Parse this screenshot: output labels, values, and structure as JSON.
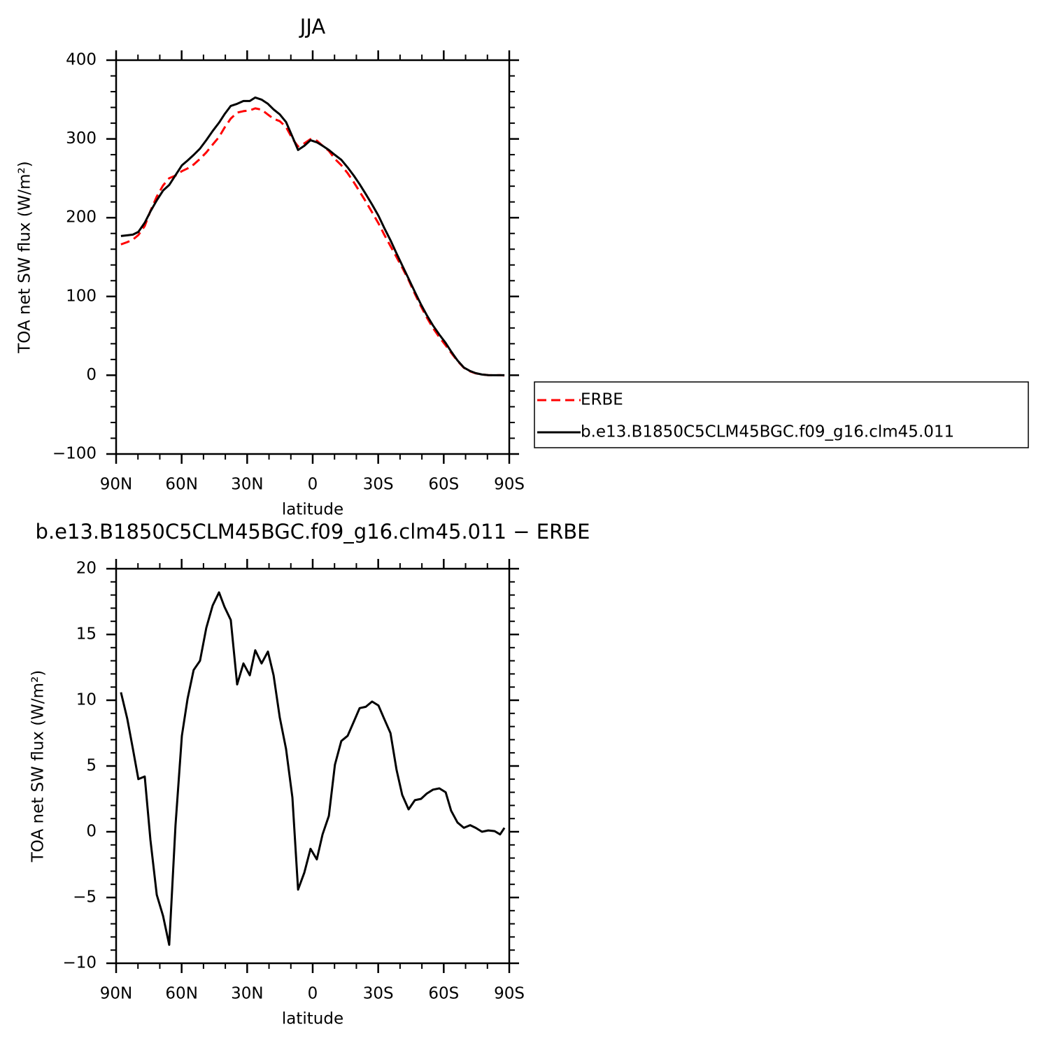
{
  "chart_data": [
    {
      "type": "line",
      "title": "JJA",
      "xlabel": "latitude",
      "ylabel": "TOA net SW flux (W/m²)",
      "xlim": [
        90,
        -90
      ],
      "ylim": [
        -100,
        400
      ],
      "xticks": [
        {
          "value": 90,
          "label": "90N"
        },
        {
          "value": 60,
          "label": "60N"
        },
        {
          "value": 30,
          "label": "30N"
        },
        0,
        {
          "value": -30,
          "label": "30S"
        },
        {
          "value": -60,
          "label": "60S"
        },
        {
          "value": -90,
          "label": "90S"
        }
      ],
      "yticks": [
        {
          "value": -100,
          "label": "−100"
        },
        0,
        100,
        200,
        300,
        400
      ],
      "x": [
        87.8,
        84.9,
        82.3,
        79.8,
        76.9,
        74.3,
        71.4,
        68.5,
        65.7,
        62.8,
        59.9,
        57.3,
        54.5,
        51.6,
        48.7,
        45.8,
        42.9,
        40.4,
        37.5,
        34.6,
        31.7,
        28.8,
        26.3,
        23.4,
        20.5,
        17.9,
        15.1,
        12.2,
        9.3,
        6.7,
        3.8,
        1.0,
        -1.9,
        -4.5,
        -7.4,
        -10.2,
        -13.1,
        -16.0,
        -18.9,
        -21.5,
        -24.3,
        -27.2,
        -30.1,
        -32.7,
        -35.6,
        -38.4,
        -41.0,
        -43.9,
        -46.8,
        -49.6,
        -52.2,
        -55.1,
        -58.0,
        -60.9,
        -63.4,
        -66.3,
        -69.2,
        -72.1,
        -74.6,
        -77.5,
        -80.4,
        -83.3,
        -85.8,
        -87.8
      ],
      "series": [
        {
          "name": "ERBE",
          "color": "#ff0000",
          "dashed": true,
          "values": [
            166.1,
            169.0,
            172.2,
            178.0,
            189.4,
            208.4,
            226.8,
            240.9,
            250.2,
            253.5,
            259.1,
            262.5,
            267.4,
            274.7,
            282.9,
            292.8,
            302.4,
            314.2,
            325.8,
            333.4,
            335.3,
            336.2,
            338.8,
            337.1,
            330.9,
            325.6,
            322.6,
            315.2,
            300.2,
            290.4,
            294.4,
            299.7,
            297.8,
            291.5,
            284.8,
            274.6,
            266.6,
            256.5,
            244.7,
            233.1,
            220.5,
            206.8,
            192.9,
            178.8,
            163.9,
            149.8,
            136.6,
            120.9,
            103.3,
            87.2,
            73.5,
            59.9,
            48.2,
            37.9,
            28.6,
            18.0,
            9.5,
            4.8,
            2.4,
            0.9,
            0.1,
            -0.05,
            0.2,
            -0.3
          ]
        },
        {
          "name": "b.e13.B1850C5CLM45BGC.f09_g16.clm45.011",
          "color": "#000000",
          "dashed": false,
          "values": [
            176.7,
            177.6,
            178.5,
            182.0,
            193.6,
            207.8,
            222.0,
            234.5,
            241.6,
            254.0,
            266.4,
            272.6,
            279.7,
            287.7,
            298.4,
            310.0,
            320.6,
            331.3,
            341.9,
            344.6,
            348.1,
            348.1,
            352.6,
            349.9,
            344.6,
            337.5,
            331.3,
            321.5,
            302.8,
            286.0,
            291.3,
            298.4,
            295.7,
            291.3,
            286.0,
            279.7,
            273.5,
            263.8,
            253.1,
            242.5,
            230.0,
            216.7,
            202.5,
            187.4,
            171.4,
            154.5,
            139.4,
            122.6,
            105.7,
            89.7,
            76.4,
            63.1,
            51.5,
            40.9,
            30.2,
            18.7,
            9.8,
            5.3,
            2.7,
            0.9,
            0.2,
            0,
            0,
            0
          ]
        }
      ]
    },
    {
      "type": "line",
      "title": "b.e13.B1850C5CLM45BGC.f09_g16.clm45.011  −  ERBE",
      "xlabel": "latitude",
      "ylabel": "TOA net SW flux (W/m²)",
      "xlim": [
        90,
        -90
      ],
      "ylim": [
        -10,
        20
      ],
      "xticks": [
        {
          "value": 90,
          "label": "90N"
        },
        {
          "value": 60,
          "label": "60N"
        },
        {
          "value": 30,
          "label": "30N"
        },
        0,
        {
          "value": -30,
          "label": "30S"
        },
        {
          "value": -60,
          "label": "60S"
        },
        {
          "value": -90,
          "label": "90S"
        }
      ],
      "yticks": [
        {
          "value": -10,
          "label": "−10"
        },
        {
          "value": -5,
          "label": "−5"
        },
        0,
        5,
        10,
        15,
        20
      ],
      "x": [
        87.8,
        84.9,
        82.3,
        79.8,
        76.9,
        74.3,
        71.4,
        68.5,
        65.7,
        62.8,
        59.9,
        57.3,
        54.5,
        51.6,
        48.7,
        45.8,
        42.9,
        40.4,
        37.5,
        34.6,
        31.7,
        28.8,
        26.3,
        23.4,
        20.5,
        17.9,
        15.1,
        12.2,
        9.3,
        6.7,
        3.8,
        1.0,
        -1.9,
        -4.5,
        -7.4,
        -10.2,
        -13.1,
        -16.0,
        -18.9,
        -21.5,
        -24.3,
        -27.2,
        -30.1,
        -32.7,
        -35.6,
        -38.4,
        -41.0,
        -43.9,
        -46.8,
        -49.6,
        -52.2,
        -55.1,
        -58.0,
        -60.9,
        -63.4,
        -66.3,
        -69.2,
        -72.1,
        -74.6,
        -77.5,
        -80.4,
        -83.3,
        -85.8,
        -87.8
      ],
      "series": [
        {
          "color": "#000000",
          "dashed": false,
          "values": [
            10.6,
            8.6,
            6.3,
            4.0,
            4.2,
            -0.6,
            -4.8,
            -6.4,
            -8.6,
            0.5,
            7.3,
            10.1,
            12.3,
            13.0,
            15.5,
            17.2,
            18.2,
            17.1,
            16.1,
            11.2,
            12.8,
            11.9,
            13.8,
            12.8,
            13.7,
            11.9,
            8.7,
            6.3,
            2.6,
            -4.4,
            -3.1,
            -1.3,
            -2.1,
            -0.2,
            1.2,
            5.1,
            6.9,
            7.3,
            8.4,
            9.4,
            9.5,
            9.9,
            9.6,
            8.6,
            7.5,
            4.7,
            2.8,
            1.7,
            2.4,
            2.5,
            2.9,
            3.2,
            3.3,
            3.0,
            1.6,
            0.7,
            0.3,
            0.5,
            0.3,
            0.0,
            0.1,
            0.05,
            -0.2,
            0.3
          ]
        }
      ]
    }
  ]
}
